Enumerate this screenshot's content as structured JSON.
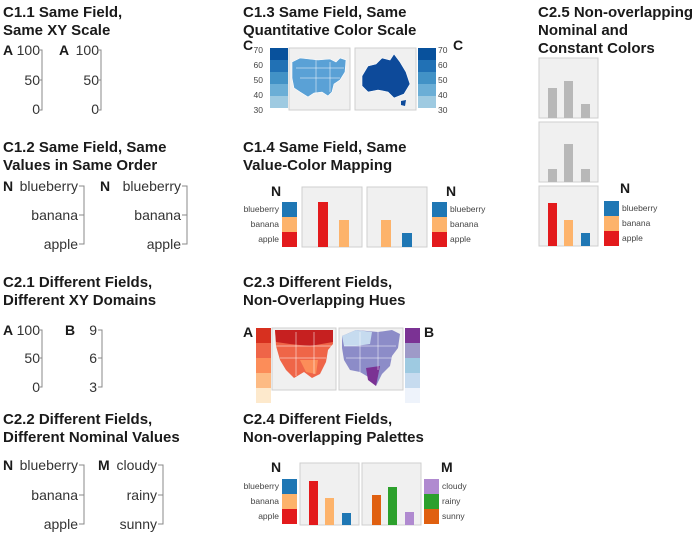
{
  "colors": {
    "blue": "#1f77b4",
    "orange": "#fdb36b",
    "red": "#e31a1c",
    "gray": "#b8b8b8",
    "green": "#2ca02c",
    "purple": "#b08ad0",
    "darkorange": "#e06010",
    "blues": [
      "#08519c",
      "#2171b5",
      "#4292c6",
      "#6baed6",
      "#9ecae1"
    ],
    "reds": [
      "#d7301f",
      "#ef6548",
      "#fc8d59",
      "#fdbb84",
      "#fde9cc"
    ],
    "purples": [
      "#7b3294",
      "#9e9ac8",
      "#9ecae1",
      "#c6dbef",
      "#eef3fb"
    ]
  },
  "c11": {
    "title": [
      "C1.1 Same Field,",
      "Same XY Scale"
    ],
    "left": {
      "label": "A",
      "ticks": [
        "100",
        "50",
        "0"
      ]
    },
    "right": {
      "label": "A",
      "ticks": [
        "100",
        "50",
        "0"
      ]
    }
  },
  "c12": {
    "title": [
      "C1.2 Same Field, Same",
      "Values in Same Order"
    ],
    "left": {
      "label": "N",
      "ticks": [
        "blueberry",
        "banana",
        "apple"
      ]
    },
    "right": {
      "label": "N",
      "ticks": [
        "blueberry",
        "banana",
        "apple"
      ]
    }
  },
  "c21": {
    "title": [
      "C2.1 Different Fields,",
      "Different XY Domains"
    ],
    "left": {
      "label": "A",
      "ticks": [
        "100",
        "50",
        "0"
      ]
    },
    "right": {
      "label": "B",
      "ticks": [
        "9",
        "6",
        "3"
      ]
    }
  },
  "c22": {
    "title": [
      "C2.2 Different Fields,",
      "Different Nominal Values"
    ],
    "left": {
      "label": "N",
      "ticks": [
        "blueberry",
        "banana",
        "apple"
      ]
    },
    "right": {
      "label": "M",
      "ticks": [
        "cloudy",
        "rainy",
        "sunny"
      ]
    }
  },
  "c13": {
    "title": [
      "C1.3 Same Field, Same",
      "Quantitative Color Scale"
    ],
    "left_label": "C",
    "right_label": "C",
    "scale": [
      "70",
      "60",
      "50",
      "40",
      "30"
    ]
  },
  "c14": {
    "title": [
      "C1.4 Same Field, Same",
      "Value-Color Mapping"
    ],
    "left_label": "N",
    "right_label": "N",
    "legend": [
      "blueberry",
      "banana",
      "apple"
    ]
  },
  "c23": {
    "title": [
      "C2.3 Different Fields,",
      "Non-Overlapping Hues"
    ],
    "left_label": "A",
    "right_label": "B"
  },
  "c24": {
    "title": [
      "C2.4 Different Fields,",
      "Non-overlapping Palettes"
    ],
    "left_label": "N",
    "right_label": "M",
    "left_legend": [
      "blueberry",
      "banana",
      "apple"
    ],
    "right_legend": [
      "cloudy",
      "rainy",
      "sunny"
    ]
  },
  "c25": {
    "title": [
      "C2.5 Non-overlapping",
      "Nominal and",
      "Constant Colors"
    ],
    "legend_label": "N",
    "legend": [
      "blueberry",
      "banana",
      "apple"
    ]
  }
}
